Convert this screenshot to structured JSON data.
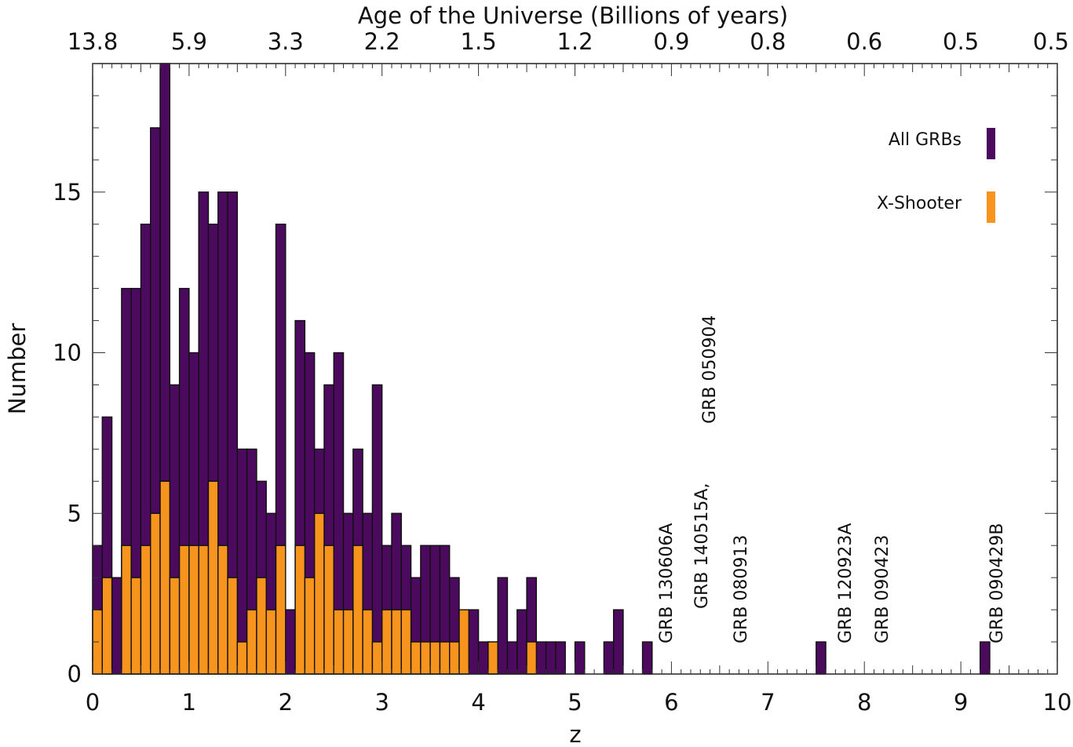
{
  "chart_data": {
    "type": "bar",
    "style": "stepped histogram (overlaid)",
    "xlabel": "z",
    "ylabel": "Number",
    "top_axis_label": "Age of the Universe (Billions of years)",
    "xlim": [
      0,
      10
    ],
    "ylim": [
      0,
      19
    ],
    "x_ticks": [
      "0",
      "1",
      "2",
      "3",
      "4",
      "5",
      "6",
      "7",
      "8",
      "9",
      "10"
    ],
    "y_ticks": [
      {
        "value": 0,
        "label": "0"
      },
      {
        "value": 5,
        "label": "5"
      },
      {
        "value": 10,
        "label": "10"
      },
      {
        "value": 15,
        "label": "15"
      }
    ],
    "top_ticks": [
      {
        "z": 0,
        "label": "13.8"
      },
      {
        "z": 1,
        "label": "5.9"
      },
      {
        "z": 2,
        "label": "3.3"
      },
      {
        "z": 3,
        "label": "2.2"
      },
      {
        "z": 4,
        "label": "1.5"
      },
      {
        "z": 5,
        "label": "1.2"
      },
      {
        "z": 6,
        "label": "0.9"
      },
      {
        "z": 7,
        "label": "0.8"
      },
      {
        "z": 8,
        "label": "0.6"
      },
      {
        "z": 9,
        "label": "0.5"
      },
      {
        "z": 10,
        "label": "0.5"
      }
    ],
    "bin_width": 0.1,
    "series": [
      {
        "name": "All GRBs",
        "color": "#4b0a5e",
        "values": [
          4,
          8,
          3,
          12,
          12,
          14,
          17,
          19,
          9,
          12,
          10,
          15,
          14,
          15,
          15,
          7,
          7,
          6,
          5,
          14,
          2,
          11,
          10,
          7,
          9,
          10,
          5,
          7,
          5,
          9,
          4,
          5,
          4,
          3,
          4,
          4,
          4,
          3,
          1,
          2,
          1,
          1,
          3,
          1,
          2,
          3,
          1,
          1,
          1,
          0,
          1,
          0,
          0,
          1,
          2,
          0,
          0,
          1,
          0,
          0,
          0,
          0,
          0,
          0,
          0,
          0,
          0,
          0,
          0,
          0,
          0,
          0,
          0,
          0,
          0,
          1,
          0,
          0,
          0,
          0,
          0,
          0,
          0,
          0,
          0,
          0,
          0,
          0,
          0,
          0,
          0,
          0,
          1,
          0,
          0,
          0,
          0,
          0,
          0,
          0
        ],
        "values_note": "bins 0.0-9.5 in steps of 0.1 (first 50 bins)",
        "bins_start": 0.0
      },
      {
        "name": "X-Shooter",
        "color": "#f7941d",
        "values": [
          2,
          3,
          0,
          4,
          3,
          4,
          5,
          6,
          3,
          4,
          4,
          4,
          6,
          4,
          3,
          1,
          2,
          3,
          2,
          4,
          0,
          4,
          3,
          5,
          4,
          2,
          2,
          4,
          2,
          1,
          2,
          2,
          2,
          1,
          1,
          1,
          1,
          1,
          2,
          0,
          0,
          1,
          0,
          0,
          0,
          1,
          0,
          0,
          0,
          0
        ],
        "bins_start": 0.0
      }
    ],
    "annotations": [
      {
        "text": "GRB 130606A",
        "z": 5.9
      },
      {
        "text": "GRB 140515A,",
        "z": 6.3
      },
      {
        "text": "GRB 050904",
        "z": 6.3
      },
      {
        "text": "GRB 080913",
        "z": 6.7
      },
      {
        "text": "GRB 120923A",
        "z": 7.8
      },
      {
        "text": "GRB 090423",
        "z": 8.2
      },
      {
        "text": "GRB 090429B",
        "z": 9.4
      }
    ],
    "legend": {
      "placement": "top-right",
      "entries": [
        {
          "label": "All GRBs",
          "color": "#4b0a5e"
        },
        {
          "label": "X-Shooter",
          "color": "#f7941d"
        }
      ]
    }
  }
}
